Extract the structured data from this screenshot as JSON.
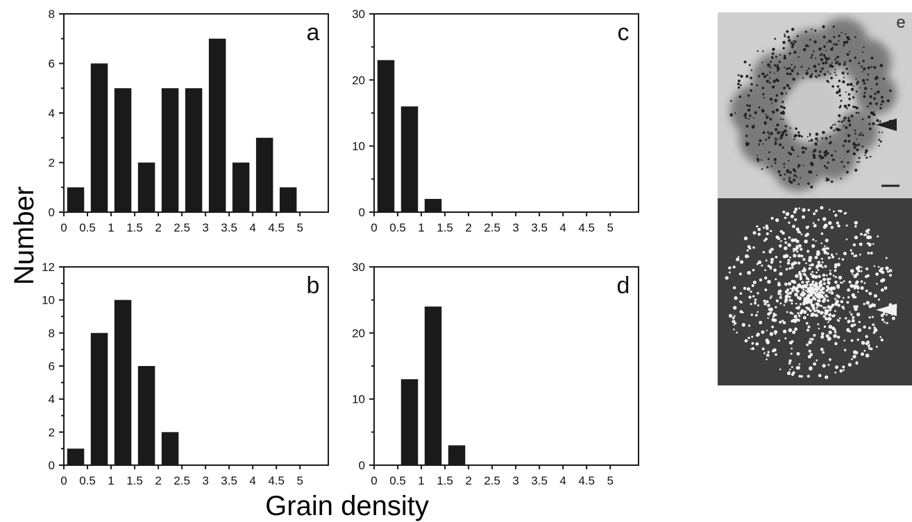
{
  "figure": {
    "ylabel": "Number",
    "xlabel": "Grain density",
    "micrograph_label": "e"
  },
  "chart_data": [
    {
      "type": "bar",
      "panel": "a",
      "categories": [
        "0.25",
        "0.75",
        "1.25",
        "1.75",
        "2.25",
        "2.75",
        "3.25",
        "3.75",
        "4.25",
        "4.75"
      ],
      "values": [
        1,
        6,
        5,
        2,
        5,
        5,
        7,
        2,
        3,
        1
      ],
      "x_ticks": [
        "0",
        "0.5",
        "1",
        "1.5",
        "2",
        "2.5",
        "3",
        "3.5",
        "4",
        "4.5",
        "5"
      ],
      "xlim": [
        0,
        5.6
      ],
      "ylim": [
        0,
        8
      ],
      "y_ticks": [
        0,
        2,
        4,
        6,
        8
      ],
      "grid": false
    },
    {
      "type": "bar",
      "panel": "b",
      "categories": [
        "0.25",
        "0.75",
        "1.25",
        "1.75",
        "2.25",
        "2.75",
        "3.25",
        "3.75",
        "4.25",
        "4.75"
      ],
      "values": [
        1,
        8,
        10,
        6,
        2,
        0,
        0,
        0,
        0,
        0
      ],
      "x_ticks": [
        "0",
        "0.5",
        "1",
        "1.5",
        "2",
        "2.5",
        "3",
        "3.5",
        "4",
        "4.5",
        "5"
      ],
      "xlim": [
        0,
        5.6
      ],
      "ylim": [
        0,
        12
      ],
      "y_ticks": [
        0,
        2,
        4,
        6,
        8,
        10,
        12
      ],
      "grid": false
    },
    {
      "type": "bar",
      "panel": "c",
      "categories": [
        "0.25",
        "0.75",
        "1.25",
        "1.75",
        "2.25",
        "2.75",
        "3.25",
        "3.75",
        "4.25",
        "4.75"
      ],
      "values": [
        23,
        16,
        2,
        0,
        0,
        0,
        0,
        0,
        0,
        0
      ],
      "x_ticks": [
        "0",
        "0.5",
        "1",
        "1.5",
        "2",
        "2.5",
        "3",
        "3.5",
        "4",
        "4.5",
        "5"
      ],
      "xlim": [
        0,
        5.6
      ],
      "ylim": [
        0,
        30
      ],
      "y_ticks": [
        0,
        10,
        20,
        30
      ],
      "grid": false
    },
    {
      "type": "bar",
      "panel": "d",
      "categories": [
        "0.25",
        "0.75",
        "1.25",
        "1.75",
        "2.25",
        "2.75",
        "3.25",
        "3.75",
        "4.25",
        "4.75"
      ],
      "values": [
        0,
        13,
        24,
        3,
        0,
        0,
        0,
        0,
        0,
        0
      ],
      "x_ticks": [
        "0",
        "0.5",
        "1",
        "1.5",
        "2",
        "2.5",
        "3",
        "3.5",
        "4",
        "4.5",
        "5"
      ],
      "xlim": [
        0,
        5.6
      ],
      "ylim": [
        0,
        30
      ],
      "y_ticks": [
        0,
        10,
        20,
        30
      ],
      "grid": false
    }
  ],
  "colors": {
    "bar": "#1a1a1a",
    "axis": "#1a1a1a",
    "micrograph_top_bg": "#cfcfcf",
    "micrograph_bottom_bg": "#3d3d3d"
  },
  "icons": {
    "arrowhead": "arrowhead-icon",
    "scale_bar": "scale-bar-icon"
  }
}
